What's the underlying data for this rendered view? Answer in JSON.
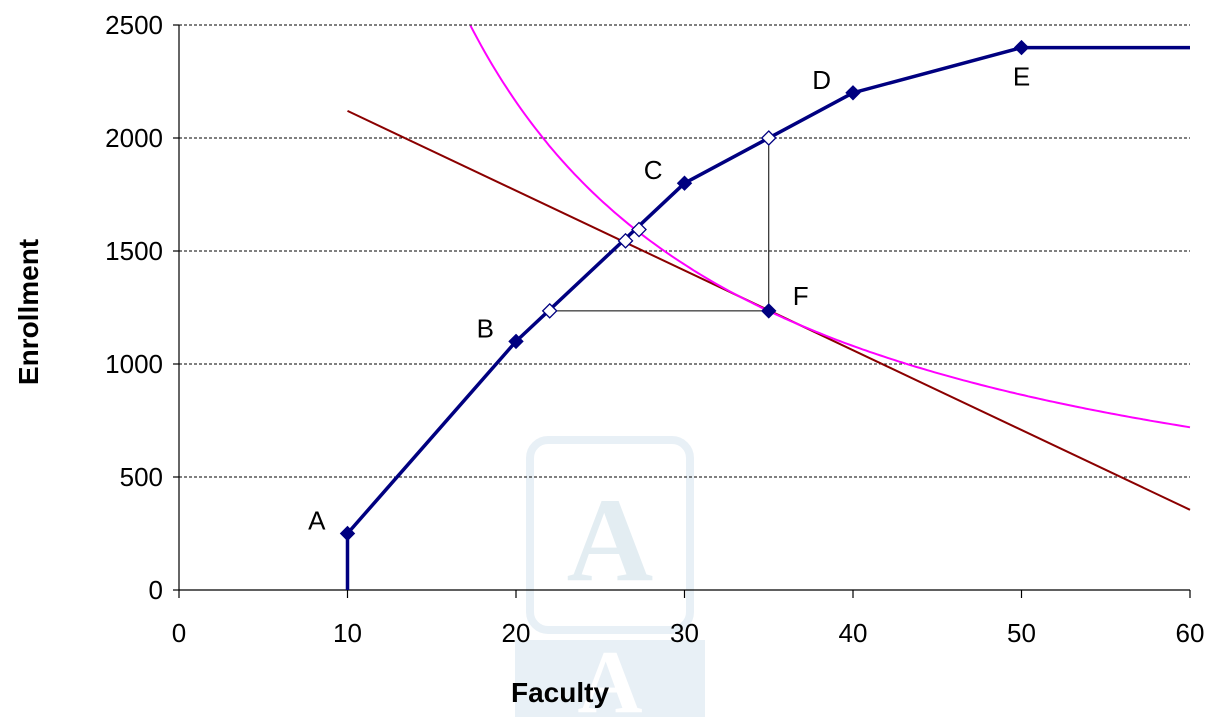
{
  "chart_data": {
    "type": "line",
    "xlabel": "Faculty",
    "ylabel": "Enrollment",
    "xlim": [
      0,
      60
    ],
    "ylim": [
      0,
      2500
    ],
    "x_ticks": [
      0,
      10,
      20,
      30,
      40,
      50,
      60
    ],
    "y_ticks": [
      0,
      500,
      1000,
      1500,
      2000,
      2500
    ],
    "grid": "horizontal dashed",
    "colors": {
      "production": "#000080",
      "straight_line": "#8B0000",
      "curve": "#FF00FF",
      "construction": "#000000",
      "grid": "#000000"
    },
    "series": [
      {
        "key": "production",
        "type": "line",
        "points": [
          [
            10,
            0
          ],
          [
            10,
            250
          ],
          [
            20,
            1100
          ],
          [
            30,
            1800
          ],
          [
            40,
            2200
          ],
          [
            50,
            2400
          ],
          [
            60,
            2400
          ]
        ]
      },
      {
        "key": "straight_line",
        "type": "line",
        "points": [
          [
            10,
            2120
          ],
          [
            60,
            355
          ]
        ]
      },
      {
        "key": "curve",
        "type": "line",
        "function": "k/x",
        "k": 43200,
        "x_range": [
          17.3,
          60
        ]
      }
    ],
    "labeled_points": [
      {
        "label": "A",
        "x": 10,
        "y": 250,
        "pos": "left"
      },
      {
        "label": "B",
        "x": 20,
        "y": 1100,
        "pos": "left"
      },
      {
        "label": "C",
        "x": 30,
        "y": 1800,
        "pos": "left"
      },
      {
        "label": "D",
        "x": 40,
        "y": 2200,
        "pos": "left"
      },
      {
        "label": "E",
        "x": 50,
        "y": 2400,
        "pos": "below"
      },
      {
        "label": "F",
        "x": 35,
        "y": 1235,
        "pos": "right"
      }
    ],
    "open_markers": [
      {
        "x": 22,
        "y": 1235
      },
      {
        "x": 35,
        "y": 2000
      },
      {
        "x": 26.5,
        "y": 1545
      },
      {
        "x": 27.3,
        "y": 1595
      }
    ],
    "construction_lines": [
      [
        [
          22,
          1235
        ],
        [
          35,
          1235
        ]
      ],
      [
        [
          35,
          1235
        ],
        [
          35,
          2000
        ]
      ]
    ]
  }
}
